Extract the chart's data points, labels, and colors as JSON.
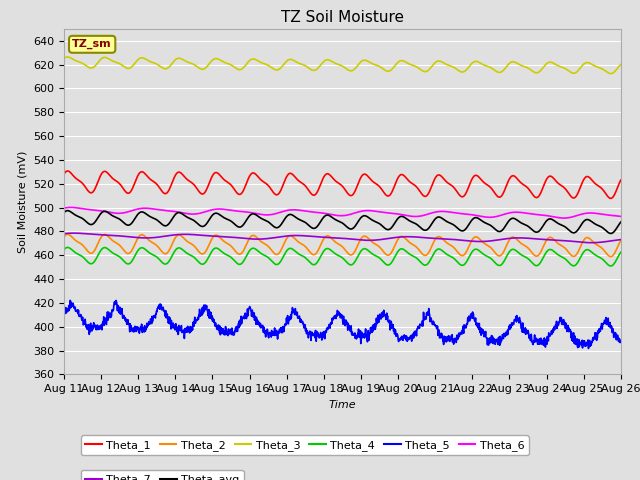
{
  "title": "TZ Soil Moisture",
  "xlabel": "Time",
  "ylabel": "Soil Moisture (mV)",
  "ylim": [
    360,
    650
  ],
  "yticks": [
    360,
    380,
    400,
    420,
    440,
    460,
    480,
    500,
    520,
    540,
    560,
    580,
    600,
    620,
    640
  ],
  "date_start": 11,
  "date_end": 26,
  "n_points": 1500,
  "background_color": "#e0e0e0",
  "plot_bg_color": "#e0e0e0",
  "series": {
    "Theta_1": {
      "color": "#ff0000",
      "base": 522,
      "amplitude": 8,
      "period": 1.0,
      "trend": -5
    },
    "Theta_2": {
      "color": "#ff8800",
      "base": 470,
      "amplitude": 7,
      "period": 1.0,
      "trend": -3
    },
    "Theta_3": {
      "color": "#cccc00",
      "base": 622,
      "amplitude": 4,
      "period": 1.0,
      "trend": -5
    },
    "Theta_4": {
      "color": "#00cc00",
      "base": 460,
      "amplitude": 6,
      "period": 1.0,
      "trend": -2
    },
    "Theta_5": {
      "color": "#0000ff",
      "base": 400,
      "amplitude": 20,
      "period": 1.2,
      "trend": -15
    },
    "Theta_6": {
      "color": "#ff00ff",
      "base": 498,
      "amplitude": 2,
      "period": 2.0,
      "trend": -5
    },
    "Theta_7": {
      "color": "#9900cc",
      "base": 477,
      "amplitude": 1.5,
      "period": 3.0,
      "trend": -5
    },
    "Theta_avg": {
      "color": "#000000",
      "base": 492,
      "amplitude": 5,
      "period": 1.0,
      "trend": -8
    }
  },
  "legend_label": "TZ_sm",
  "legend_box_color": "#ffff99",
  "legend_box_edge": "#888800",
  "title_fontsize": 11,
  "axis_label_fontsize": 8,
  "tick_fontsize": 8
}
